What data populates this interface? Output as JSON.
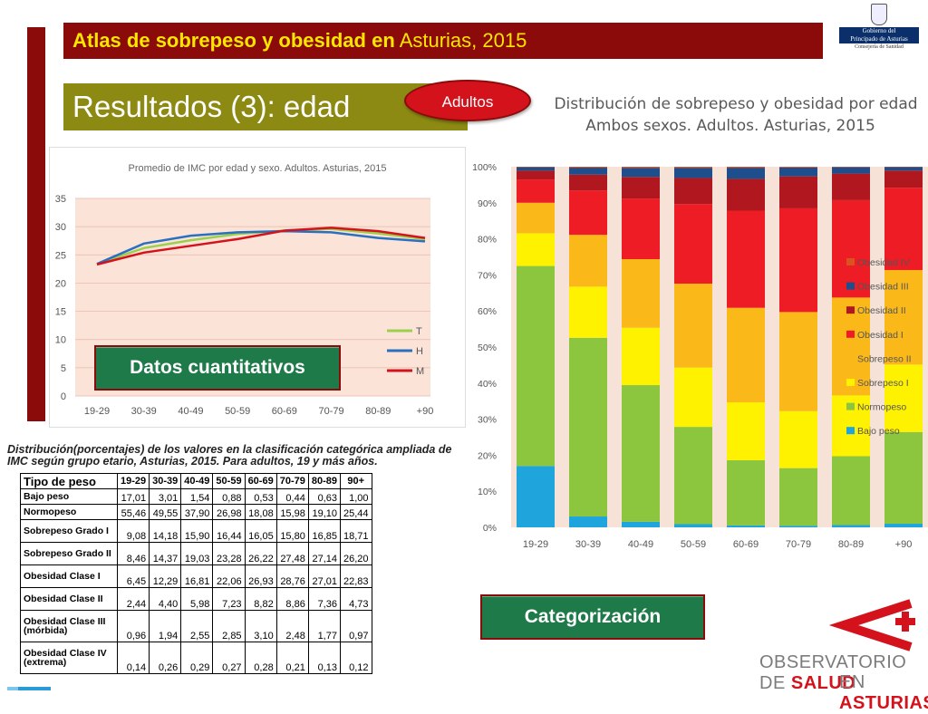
{
  "header": {
    "title_bold": "Atlas de sobrepeso y obesidad en",
    "title_rest": "Asturias, 2015",
    "gov_line1": "Gobierno del",
    "gov_line2": "Principado de Asturias",
    "gov_line3": "Consejería de Sanidad"
  },
  "section": {
    "title": "Resultados (3): edad",
    "badge": "Adultos"
  },
  "buttons": {
    "datos": "Datos cuantitativos",
    "cat": "Categorización"
  },
  "colors": {
    "banner": "#8b0a0a",
    "title_bg": "#8c8a12",
    "button_green": "#1f7a4a",
    "pill_red": "#d3121c"
  },
  "table": {
    "caption": "Distribución(porcentajes) de los valores en la clasificación categórica ampliada de IMC según grupo etario, Asturias, 2015. Para adultos, 19 y más años.",
    "header": [
      "Tipo de peso",
      "19-29",
      "30-39",
      "40-49",
      "50-59",
      "60-69",
      "70-79",
      "80-89",
      "90+"
    ],
    "rows": [
      {
        "label": "Bajo peso",
        "values": [
          "17,01",
          "3,01",
          "1,54",
          "0,88",
          "0,53",
          "0,44",
          "0,63",
          "1,00"
        ]
      },
      {
        "label": "Normopeso",
        "values": [
          "55,46",
          "49,55",
          "37,90",
          "26,98",
          "18,08",
          "15,98",
          "19,10",
          "25,44"
        ]
      },
      {
        "label": "Sobrepeso Grado I",
        "values": [
          "9,08",
          "14,18",
          "15,90",
          "16,44",
          "16,05",
          "15,80",
          "16,85",
          "18,71"
        ]
      },
      {
        "label": "Sobrepeso Grado II",
        "values": [
          "8,46",
          "14,37",
          "19,03",
          "23,28",
          "26,22",
          "27,48",
          "27,14",
          "26,20"
        ]
      },
      {
        "label": "Obesidad Clase I",
        "values": [
          "6,45",
          "12,29",
          "16,81",
          "22,06",
          "26,93",
          "28,76",
          "27,01",
          "22,83"
        ]
      },
      {
        "label": "Obesidad Clase II",
        "values": [
          "2,44",
          "4,40",
          "5,98",
          "7,23",
          "8,82",
          "8,86",
          "7,36",
          "4,73"
        ]
      },
      {
        "label": "Obesidad Clase III (mórbida)",
        "values": [
          "0,96",
          "1,94",
          "2,55",
          "2,85",
          "3,10",
          "2,48",
          "1,77",
          "0,97"
        ]
      },
      {
        "label": "Obesidad Clase IV (extrema)",
        "values": [
          "0,14",
          "0,26",
          "0,29",
          "0,27",
          "0,28",
          "0,21",
          "0,13",
          "0,12"
        ]
      }
    ]
  },
  "logo": {
    "line1": "OBSERVATORIO DE",
    "line1_red": "SALUD",
    "line2_pre": "EN",
    "line2_red": "ASTURIAS"
  },
  "chart_data": [
    {
      "type": "line",
      "title": "Promedio de IMC por edad y sexo. Adultos. Asturias, 2015",
      "categories": [
        "19-29",
        "30-39",
        "40-49",
        "50-59",
        "60-69",
        "70-79",
        "80-89",
        "+90"
      ],
      "yticks": [
        "0",
        "5",
        "10",
        "15",
        "20",
        "25",
        "30",
        "35"
      ],
      "ylim": [
        0,
        35
      ],
      "series": [
        {
          "name": "T",
          "color": "#9bd04d",
          "values": [
            23.4,
            26.2,
            27.6,
            28.7,
            29.3,
            29.6,
            28.8,
            27.8
          ]
        },
        {
          "name": "H",
          "color": "#2a6fc0",
          "values": [
            23.4,
            27.0,
            28.4,
            29.0,
            29.2,
            29.0,
            28.0,
            27.4
          ]
        },
        {
          "name": "M",
          "color": "#d3121c",
          "values": [
            23.3,
            25.4,
            26.6,
            27.8,
            29.3,
            29.8,
            29.2,
            28.0
          ]
        }
      ]
    },
    {
      "type": "bar",
      "stacked": true,
      "title": "Distribución de sobrepeso y obesidad por edad",
      "subtitle": "Ambos sexos. Adultos. Asturias, 2015",
      "categories": [
        "19-29",
        "30-39",
        "40-49",
        "50-59",
        "60-69",
        "70-79",
        "80-89",
        "+90"
      ],
      "yticks": [
        "0%",
        "10%",
        "20%",
        "30%",
        "40%",
        "50%",
        "60%",
        "70%",
        "80%",
        "90%",
        "100%"
      ],
      "ylim": [
        0,
        100
      ],
      "series": [
        {
          "name": "Bajo peso",
          "color": "#1fa4dc",
          "values": [
            17.01,
            3.01,
            1.54,
            0.88,
            0.53,
            0.44,
            0.63,
            1.0
          ]
        },
        {
          "name": "Normopeso",
          "color": "#8cc63f",
          "values": [
            55.46,
            49.55,
            37.9,
            26.98,
            18.08,
            15.98,
            19.1,
            25.44
          ]
        },
        {
          "name": "Sobrepeso I",
          "color": "#fff200",
          "values": [
            9.08,
            14.18,
            15.9,
            16.44,
            16.05,
            15.8,
            16.85,
            18.71
          ]
        },
        {
          "name": "Sobrepeso II",
          "color": "#fbb919",
          "values": [
            8.46,
            14.37,
            19.03,
            23.28,
            26.22,
            27.48,
            27.14,
            26.2
          ]
        },
        {
          "name": "Obesidad I",
          "color": "#ee1c25",
          "values": [
            6.45,
            12.29,
            16.81,
            22.06,
            26.93,
            28.76,
            27.01,
            22.83
          ]
        },
        {
          "name": "Obesidad II",
          "color": "#b0171e",
          "values": [
            2.44,
            4.4,
            5.98,
            7.23,
            8.82,
            8.86,
            7.36,
            4.73
          ]
        },
        {
          "name": "Obesidad III",
          "color": "#1f4e8c",
          "values": [
            0.96,
            1.94,
            2.55,
            2.85,
            3.1,
            2.48,
            1.77,
            0.97
          ]
        },
        {
          "name": "Obesidad IV",
          "color": "#d9541e",
          "values": [
            0.14,
            0.26,
            0.29,
            0.27,
            0.28,
            0.21,
            0.13,
            0.12
          ]
        }
      ]
    }
  ]
}
